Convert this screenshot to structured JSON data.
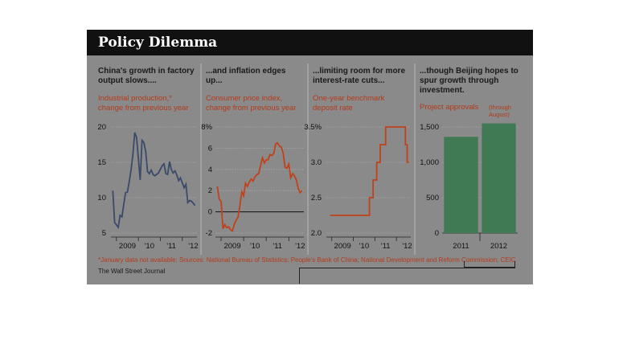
{
  "title": "Policy Dilemma",
  "colors": {
    "accent": "#c0421a",
    "line_blue": "#3a4a6a",
    "bar_green": "#3f7a55",
    "background": "#8a8a8a",
    "title_bg": "#111111"
  },
  "panels": [
    {
      "heading": "China's growth in factory output slows....",
      "sub": "Industrial production,* change from previous year"
    },
    {
      "heading": "...and inflation edges up...",
      "sub": "Consumer price index, change from previous year"
    },
    {
      "heading": "...limiting room for more interest-rate cuts...",
      "sub": "One-year benchmark deposit rate"
    },
    {
      "heading": "...though Beijing hopes to spur growth through investment.",
      "sub": "Project approvals",
      "note": "(through August)"
    }
  ],
  "footnote": "*January data not available; Sources: National Bureau of Statistics; People's Bank of China; National Development and Reform Commission; CEIC",
  "credit": "The Wall Street Journal",
  "chart_data": [
    {
      "type": "line",
      "title": "China's growth in factory output slows....",
      "ylabel": "Industrial production,* change from previous year",
      "ylim": [
        5,
        20
      ],
      "yticks": [
        "20",
        "15",
        "10",
        "5"
      ],
      "xticks": [
        "2009",
        "'10",
        "'11",
        "'12"
      ],
      "x": [
        "2008-11",
        "2008-12",
        "2009-02",
        "2009-03",
        "2009-04",
        "2009-05",
        "2009-06",
        "2009-07",
        "2009-08",
        "2009-09",
        "2009-10",
        "2009-11",
        "2009-12",
        "2010-02",
        "2010-03",
        "2010-04",
        "2010-05",
        "2010-06",
        "2010-07",
        "2010-08",
        "2010-09",
        "2010-10",
        "2010-11",
        "2010-12",
        "2011-02",
        "2011-03",
        "2011-04",
        "2011-05",
        "2011-06",
        "2011-07",
        "2011-08",
        "2011-09",
        "2011-10",
        "2011-11",
        "2011-12",
        "2012-02",
        "2012-03",
        "2012-04",
        "2012-05",
        "2012-06",
        "2012-07",
        "2012-08"
      ],
      "series": [
        {
          "values": [
            11,
            6.5,
            5.8,
            7.5,
            7.3,
            9.0,
            10.7,
            10.8,
            12.3,
            13.9,
            16.1,
            19.2,
            18.5,
            12.5,
            18.1,
            17.8,
            16.5,
            13.7,
            13.4,
            13.9,
            13.3,
            13.1,
            13.3,
            13.5,
            14.5,
            14.8,
            13.4,
            13.3,
            15.1,
            14.0,
            13.5,
            13.8,
            13.2,
            12.4,
            12.8,
            11.4,
            11.9,
            9.3,
            9.6,
            9.5,
            9.2,
            8.9
          ]
        }
      ]
    },
    {
      "type": "line",
      "title": "...and inflation edges up...",
      "ylabel": "Consumer price index, change from previous year",
      "ylim": [
        -2,
        8
      ],
      "yticks": [
        "8%",
        "6",
        "4",
        "2",
        "0",
        "-2"
      ],
      "xticks": [
        "2009",
        "'10",
        "'11",
        "'12"
      ],
      "x": [
        "2008-11",
        "2008-12",
        "2009-01",
        "2009-02",
        "2009-03",
        "2009-04",
        "2009-05",
        "2009-06",
        "2009-07",
        "2009-08",
        "2009-09",
        "2009-10",
        "2009-11",
        "2009-12",
        "2010-01",
        "2010-02",
        "2010-03",
        "2010-04",
        "2010-05",
        "2010-06",
        "2010-07",
        "2010-08",
        "2010-09",
        "2010-10",
        "2010-11",
        "2010-12",
        "2011-01",
        "2011-02",
        "2011-03",
        "2011-04",
        "2011-05",
        "2011-06",
        "2011-07",
        "2011-08",
        "2011-09",
        "2011-10",
        "2011-11",
        "2011-12",
        "2012-01",
        "2012-02",
        "2012-03",
        "2012-04",
        "2012-05",
        "2012-06",
        "2012-07",
        "2012-08"
      ],
      "series": [
        {
          "values": [
            2.4,
            1.2,
            1.0,
            -1.6,
            -1.2,
            -1.5,
            -1.4,
            -1.7,
            -1.8,
            -1.2,
            -0.8,
            -0.5,
            0.6,
            1.9,
            1.5,
            2.7,
            2.4,
            2.8,
            3.1,
            2.9,
            3.3,
            3.5,
            3.6,
            4.4,
            5.1,
            4.6,
            4.9,
            4.9,
            5.4,
            5.3,
            5.5,
            6.4,
            6.5,
            6.2,
            6.1,
            5.5,
            4.2,
            4.1,
            4.5,
            3.2,
            3.6,
            3.4,
            3.0,
            2.2,
            1.8,
            2.0
          ]
        }
      ]
    },
    {
      "type": "line",
      "title": "...limiting room for more interest-rate cuts...",
      "ylabel": "One-year benchmark deposit rate",
      "ylim": [
        2.0,
        3.5
      ],
      "yticks": [
        "3.5%",
        "3.0",
        "2.5",
        "2.0"
      ],
      "xticks": [
        "2009",
        "'10",
        "'11",
        "'12"
      ],
      "x": [
        "2008-12",
        "2010-10",
        "2010-12",
        "2011-02",
        "2011-04",
        "2011-07",
        "2012-06",
        "2012-07",
        "2012-08"
      ],
      "series": [
        {
          "values": [
            2.25,
            2.5,
            2.75,
            3.0,
            3.25,
            3.5,
            3.25,
            3.0,
            3.0
          ]
        }
      ]
    },
    {
      "type": "bar",
      "title": "...though Beijing hopes to spur growth through investment.",
      "ylabel": "Project approvals",
      "ylim": [
        0,
        1500
      ],
      "yticks": [
        "1,500",
        "1,000",
        "500",
        "0"
      ],
      "categories": [
        "2011",
        "2012"
      ],
      "values": [
        1360,
        1550
      ],
      "annotation": "(through August)"
    }
  ]
}
